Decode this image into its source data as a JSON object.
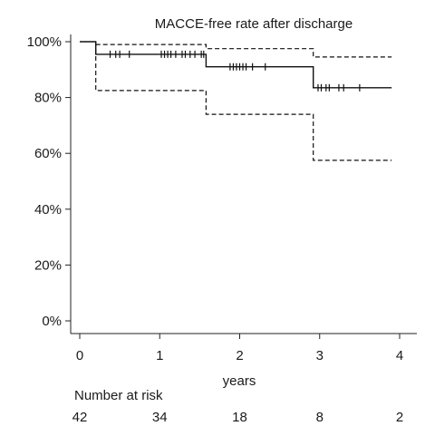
{
  "chart_data": {
    "type": "line",
    "title": "MACCE-free rate after discharge",
    "xlabel": "years",
    "ylabel": "",
    "xlim": [
      -0.15,
      4.1
    ],
    "ylim": [
      -0.05,
      1.05
    ],
    "x_ticks": [
      0,
      1,
      2,
      3,
      4
    ],
    "x_tick_labels": [
      "0",
      "1",
      "2",
      "3",
      "4"
    ],
    "y_ticks": [
      0,
      0.2,
      0.4,
      0.6,
      0.8,
      1.0
    ],
    "y_tick_labels": [
      "0%",
      "20%",
      "40%",
      "60%",
      "80%",
      "100%"
    ],
    "grid": false,
    "series": [
      {
        "style": "solid",
        "step_points": [
          [
            0,
            1.0
          ],
          [
            0.2,
            1.0
          ],
          [
            0.2,
            0.955
          ],
          [
            1.58,
            0.955
          ],
          [
            1.58,
            0.91
          ],
          [
            2.92,
            0.91
          ],
          [
            2.92,
            0.835
          ],
          [
            3.9,
            0.835
          ]
        ],
        "censor_x": [
          0.38,
          0.45,
          0.5,
          0.62,
          1.02,
          1.06,
          1.1,
          1.14,
          1.2,
          1.28,
          1.32,
          1.38,
          1.44,
          1.52,
          1.55,
          1.88,
          1.92,
          1.96,
          2.0,
          2.04,
          2.08,
          2.16,
          2.32,
          2.98,
          3.02,
          3.08,
          3.12,
          3.24,
          3.3,
          3.5
        ]
      },
      {
        "style": "dashed",
        "step_points": [
          [
            0.2,
            0.99
          ],
          [
            1.58,
            0.99
          ],
          [
            1.58,
            0.975
          ],
          [
            2.92,
            0.975
          ],
          [
            2.92,
            0.945
          ],
          [
            3.9,
            0.945
          ]
        ]
      },
      {
        "style": "dashed",
        "step_points": [
          [
            0.2,
            1.0
          ],
          [
            0.2,
            0.825
          ],
          [
            1.58,
            0.825
          ],
          [
            1.58,
            0.74
          ],
          [
            2.92,
            0.74
          ],
          [
            2.92,
            0.575
          ],
          [
            3.9,
            0.575
          ]
        ]
      }
    ]
  },
  "risk_table": {
    "title": "Number at risk",
    "counts": [
      "42",
      "34",
      "18",
      "8",
      "2"
    ]
  }
}
